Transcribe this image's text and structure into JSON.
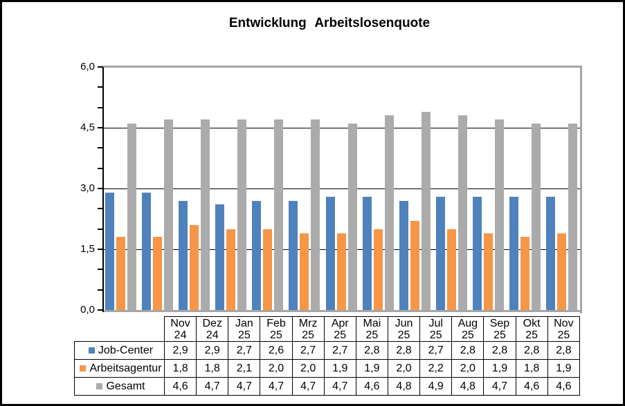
{
  "frame": {
    "background": "#FFFFFF",
    "border_color": "#000000"
  },
  "chart_data": {
    "type": "bar",
    "title": "Entwicklung Arbeitslosenquote",
    "xlabel": "",
    "ylabel": "",
    "ylim": [
      0,
      6
    ],
    "major_unit": 1.5,
    "minor_unit": 0.5,
    "grid": true,
    "legend_position": "data-table-left",
    "decimal_separator": ",",
    "yticks": [
      {
        "value": 0,
        "label": "0,0"
      },
      {
        "value": 1.5,
        "label": "1,5"
      },
      {
        "value": 3,
        "label": "3,0"
      },
      {
        "value": 4.5,
        "label": "4,5"
      },
      {
        "value": 6,
        "label": "6,0"
      }
    ],
    "categories": [
      {
        "month": "Nov",
        "year": "24"
      },
      {
        "month": "Dez",
        "year": "24"
      },
      {
        "month": "Jan",
        "year": "25"
      },
      {
        "month": "Feb",
        "year": "25"
      },
      {
        "month": "Mrz",
        "year": "25"
      },
      {
        "month": "Apr",
        "year": "25"
      },
      {
        "month": "Mai",
        "year": "25"
      },
      {
        "month": "Jun",
        "year": "25"
      },
      {
        "month": "Jul",
        "year": "25"
      },
      {
        "month": "Aug",
        "year": "25"
      },
      {
        "month": "Sep",
        "year": "25"
      },
      {
        "month": "Okt",
        "year": "25"
      },
      {
        "month": "Nov",
        "year": "25"
      }
    ],
    "series": [
      {
        "name": "Job-Center",
        "color": "#4F81BD",
        "values": [
          2.9,
          2.9,
          2.7,
          2.6,
          2.7,
          2.7,
          2.8,
          2.8,
          2.7,
          2.8,
          2.8,
          2.8,
          2.8
        ]
      },
      {
        "name": "Arbeitsagentur",
        "color": "#F79646",
        "values": [
          1.8,
          1.8,
          2.1,
          2.0,
          2.0,
          1.9,
          1.9,
          2.0,
          2.2,
          2.0,
          1.9,
          1.8,
          1.9
        ]
      },
      {
        "name": "Gesamt",
        "color": "#ABABAB",
        "values": [
          4.6,
          4.7,
          4.7,
          4.7,
          4.7,
          4.7,
          4.6,
          4.8,
          4.9,
          4.8,
          4.7,
          4.6,
          4.6
        ]
      }
    ],
    "colors": {
      "plot_border": "#A6A6A6",
      "gridline": "#000000",
      "axis": "#000000",
      "text": "#000000"
    }
  }
}
